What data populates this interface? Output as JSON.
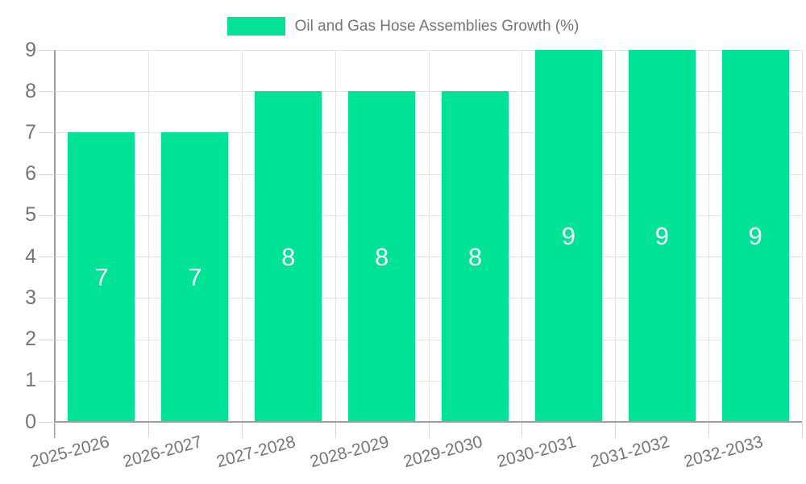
{
  "chart_data": {
    "type": "bar",
    "title": "Oil and Gas Hose Assemblies Growth (%)",
    "categories": [
      "2025-2026",
      "2026-2027",
      "2027-2028",
      "2028-2029",
      "2029-2030",
      "2030-2031",
      "2031-2032",
      "2032-2033"
    ],
    "values": [
      7,
      7,
      8,
      8,
      8,
      9,
      9,
      9
    ],
    "xlabel": "",
    "ylabel": "",
    "ylim": [
      0,
      9
    ],
    "ytick_step": 1,
    "yticks": [
      "0",
      "1",
      "2",
      "3",
      "4",
      "5",
      "6",
      "7",
      "8",
      "9"
    ],
    "grid": true,
    "legend_position": "top",
    "legend_entries": [
      "Oil and Gas Hose Assemblies Growth (%)"
    ],
    "bar_labels": [
      "7",
      "7",
      "8",
      "8",
      "8",
      "9",
      "9",
      "9"
    ],
    "colors": {
      "bar": "#00E396",
      "bar_label": "#ffffff",
      "text": "#757575",
      "grid": "#e3e3e3",
      "tick": "#d4d4d4",
      "axis": "#9e9e9e",
      "background": "#ffffff"
    }
  }
}
